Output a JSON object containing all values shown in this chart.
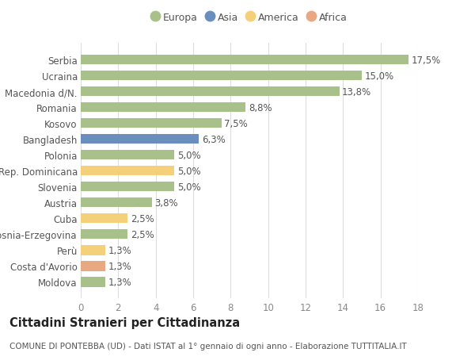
{
  "categories": [
    "Serbia",
    "Ucraina",
    "Macedonia d/N.",
    "Romania",
    "Kosovo",
    "Bangladesh",
    "Polonia",
    "Rep. Dominicana",
    "Slovenia",
    "Austria",
    "Cuba",
    "Bosnia-Erzegovina",
    "Perù",
    "Costa d'Avorio",
    "Moldova"
  ],
  "values": [
    17.5,
    15.0,
    13.8,
    8.8,
    7.5,
    6.3,
    5.0,
    5.0,
    5.0,
    3.8,
    2.5,
    2.5,
    1.3,
    1.3,
    1.3
  ],
  "bar_colors": [
    "#a8c08a",
    "#a8c08a",
    "#a8c08a",
    "#a8c08a",
    "#a8c08a",
    "#6a8fbf",
    "#a8c08a",
    "#f5d07a",
    "#a8c08a",
    "#a8c08a",
    "#f5d07a",
    "#a8c08a",
    "#f5d07a",
    "#e8a882",
    "#a8c08a"
  ],
  "labels": [
    "17,5%",
    "15,0%",
    "13,8%",
    "8,8%",
    "7,5%",
    "6,3%",
    "5,0%",
    "5,0%",
    "5,0%",
    "3,8%",
    "2,5%",
    "2,5%",
    "1,3%",
    "1,3%",
    "1,3%"
  ],
  "legend_labels": [
    "Europa",
    "Asia",
    "America",
    "Africa"
  ],
  "legend_colors": [
    "#a8c08a",
    "#6a8fbf",
    "#f5d07a",
    "#e8a882"
  ],
  "xlim": [
    0,
    18
  ],
  "xticks": [
    0,
    2,
    4,
    6,
    8,
    10,
    12,
    14,
    16,
    18
  ],
  "title": "Cittadini Stranieri per Cittadinanza",
  "subtitle": "COMUNE DI PONTEBBA (UD) - Dati ISTAT al 1° gennaio di ogni anno - Elaborazione TUTTITALIA.IT",
  "background_color": "#ffffff",
  "grid_color": "#dddddd",
  "bar_height": 0.62,
  "label_fontsize": 8.5,
  "tick_fontsize": 8.5,
  "title_fontsize": 10.5,
  "subtitle_fontsize": 7.5,
  "text_color": "#555555",
  "tick_color": "#888888"
}
